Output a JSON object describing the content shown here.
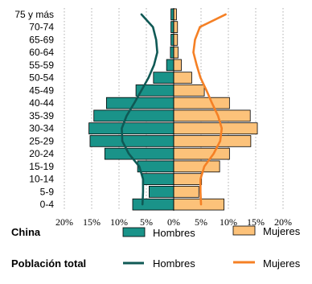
{
  "chart_data": {
    "type": "bar",
    "orientation": "horizontal",
    "subtype": "population-pyramid",
    "categories": [
      "0-4",
      "5-9",
      "10-14",
      "15-19",
      "20-24",
      "25-29",
      "30-34",
      "35-39",
      "40-44",
      "45-49",
      "50-54",
      "55-59",
      "60-64",
      "65-69",
      "70-74",
      "75 y más"
    ],
    "x_ticks": [
      "20%",
      "15%",
      "10%",
      "5%",
      "0%",
      "5%",
      "10%",
      "15%",
      "20%"
    ],
    "xlim": [
      -20,
      20
    ],
    "grid": "vertical dotted",
    "series": [
      {
        "name": "Hombres",
        "group": "China",
        "style": "bar",
        "color": "#1a9389",
        "values": [
          -7.5,
          -4.5,
          -5.7,
          -6.6,
          -12.6,
          -15.3,
          -15.5,
          -14.6,
          -12.3,
          -6.9,
          -3.7,
          -1.3,
          -0.6,
          -0.5,
          -0.5,
          -0.5
        ]
      },
      {
        "name": "Mujeres",
        "group": "China",
        "style": "bar",
        "color": "#fcc27a",
        "values": [
          9.2,
          4.6,
          5.1,
          8.4,
          10.2,
          14.1,
          15.3,
          14.0,
          10.2,
          5.6,
          3.3,
          1.4,
          0.8,
          0.7,
          0.7,
          0.5
        ]
      },
      {
        "name": "Hombres",
        "group": "Población total",
        "style": "line",
        "color": "#0f5955",
        "values": [
          -5.7,
          -5.6,
          -5.6,
          -6.3,
          -8.2,
          -9.4,
          -9.5,
          -8.6,
          -7.2,
          -5.9,
          -4.6,
          -3.6,
          -3.0,
          -3.2,
          -3.8,
          -5.9
        ]
      },
      {
        "name": "Mujeres",
        "group": "Población total",
        "style": "line",
        "color": "#f58025",
        "values": [
          5.0,
          4.9,
          4.9,
          5.6,
          7.3,
          8.5,
          8.8,
          8.1,
          7.0,
          6.0,
          4.9,
          4.2,
          3.6,
          3.9,
          4.8,
          9.5
        ]
      }
    ]
  },
  "legend": {
    "group1_title": "China",
    "group2_title": "Población total",
    "hombres": "Hombres",
    "mujeres": "Mujeres"
  },
  "colors": {
    "bar_male": "#1a9389",
    "bar_female": "#fcc27a",
    "line_male": "#0f5955",
    "line_female": "#f58025",
    "bar_stroke": "#000000"
  }
}
